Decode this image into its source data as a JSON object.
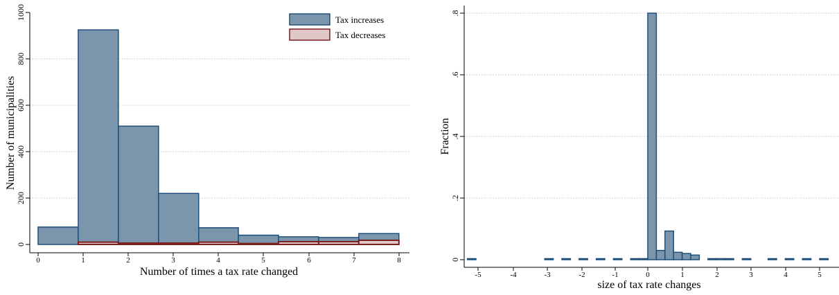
{
  "colors": {
    "increase_fill": "#7b95ad",
    "increase_edge": "#1f4e79",
    "decrease_fill": "#e0c8c8",
    "decrease_edge": "#7a1f1f",
    "grid": "#b5b5b5"
  },
  "chart_data": [
    {
      "type": "bar",
      "title": "",
      "xlabel": "Number of times a tax rate changed",
      "ylabel": "Number of municipalities",
      "xlim": [
        0,
        8
      ],
      "ylim": [
        0,
        1000
      ],
      "xticks": [
        "0",
        "1",
        "2",
        "3",
        "4",
        "5",
        "6",
        "7",
        "8"
      ],
      "yticks": [
        "0",
        "200",
        "400",
        "600",
        "800",
        "1000"
      ],
      "grid": true,
      "legend_position": "top-right",
      "bins": [
        {
          "from": 0.0,
          "to": 0.89
        },
        {
          "from": 0.89,
          "to": 1.78
        },
        {
          "from": 1.78,
          "to": 2.67
        },
        {
          "from": 2.67,
          "to": 3.56
        },
        {
          "from": 3.56,
          "to": 4.44
        },
        {
          "from": 4.44,
          "to": 5.33
        },
        {
          "from": 5.33,
          "to": 6.22
        },
        {
          "from": 6.22,
          "to": 7.11
        },
        {
          "from": 7.11,
          "to": 8.0
        }
      ],
      "series": [
        {
          "name": "Tax increases",
          "values": [
            75,
            925,
            510,
            220,
            72,
            40,
            33,
            30,
            47
          ]
        },
        {
          "name": "Tax decreases",
          "values": [
            0,
            10,
            6,
            6,
            10,
            4,
            12,
            12,
            18
          ]
        }
      ]
    },
    {
      "type": "bar",
      "title": "",
      "xlabel": "size of tax rate changes",
      "ylabel": "Fraction",
      "xlim": [
        -5.3,
        5.4
      ],
      "ylim": [
        0,
        0.8
      ],
      "xticks": [
        "-5",
        "-4",
        "-3",
        "-2",
        "-1",
        "0",
        "1",
        "2",
        "3",
        "4",
        "5"
      ],
      "yticks": [
        "0",
        ".2",
        ".4",
        ".6",
        ".8"
      ],
      "grid": true,
      "bin_width": 0.25,
      "bins_from": [
        -5.25,
        -3.0,
        -2.5,
        -2.0,
        -1.5,
        -1.0,
        -0.5,
        -0.25,
        0.0,
        0.25,
        0.5,
        0.75,
        1.0,
        1.25,
        1.75,
        2.0,
        2.25,
        2.75,
        3.5,
        4.0,
        4.5,
        5.0
      ],
      "values": [
        0.001,
        0.001,
        0.001,
        0.001,
        0.001,
        0.001,
        0.001,
        0.001,
        0.8,
        0.03,
        0.093,
        0.024,
        0.02,
        0.015,
        0.002,
        0.002,
        0.001,
        0.001,
        0.001,
        0.001,
        0.001,
        0.001
      ]
    }
  ]
}
